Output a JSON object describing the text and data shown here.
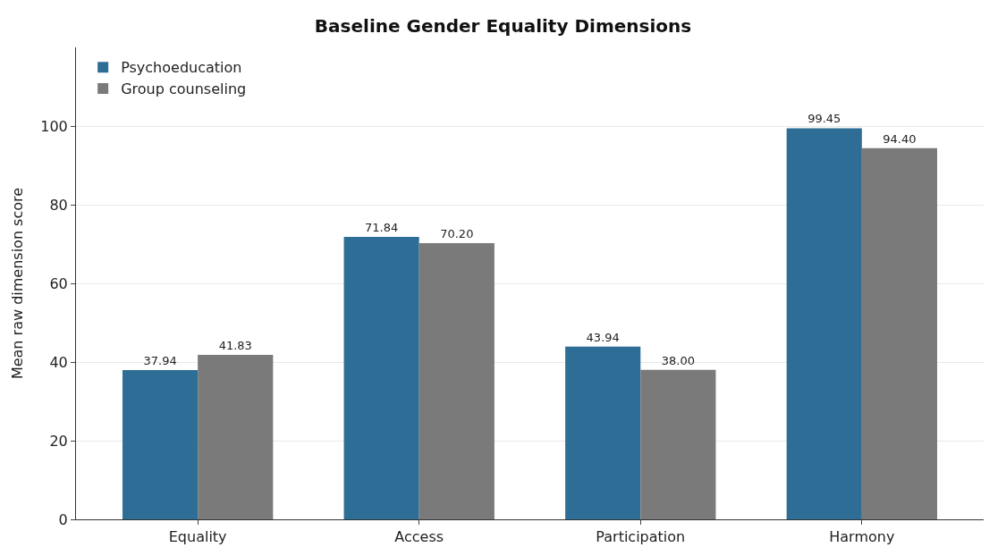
{
  "chart_data": {
    "type": "bar",
    "title": "Baseline Gender Equality Dimensions",
    "ylabel": "Mean raw dimension score",
    "categories": [
      "Equality",
      "Access",
      "Participation",
      "Harmony"
    ],
    "series": [
      {
        "name": "Psychoeducation",
        "color": "#2e6e96",
        "values": [
          37.94,
          71.84,
          43.94,
          99.45
        ],
        "value_labels": [
          "37.94",
          "71.84",
          "43.94",
          "99.45"
        ]
      },
      {
        "name": "Group counseling",
        "color": "#7a7a7a",
        "values": [
          41.83,
          70.2,
          38.0,
          94.4
        ],
        "value_labels": [
          "41.83",
          "70.20",
          "38.00",
          "94.40"
        ]
      }
    ],
    "ylim": [
      0,
      120
    ],
    "yticks": [
      0,
      20,
      40,
      60,
      80,
      100
    ],
    "grid": "y",
    "legend": "top left"
  }
}
